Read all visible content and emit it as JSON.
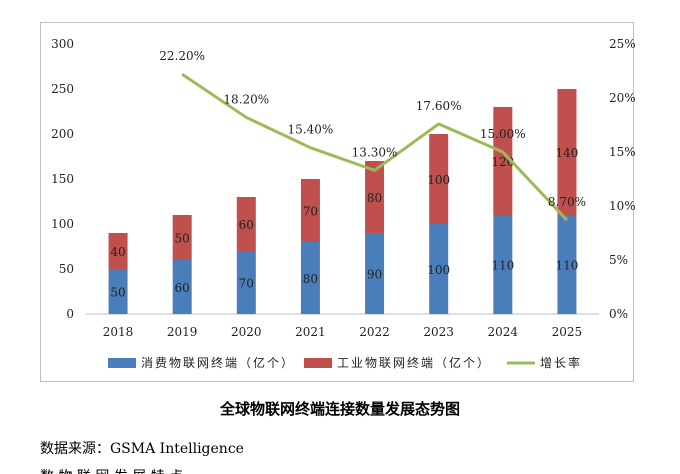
{
  "chart_data": {
    "type": "bar",
    "stacked": true,
    "categories": [
      "2018",
      "2019",
      "2020",
      "2021",
      "2022",
      "2023",
      "2024",
      "2025"
    ],
    "series": [
      {
        "name": "消费物联网终端（亿个）",
        "color": "#4a7ebb",
        "values": [
          50,
          60,
          70,
          80,
          90,
          100,
          110,
          110
        ]
      },
      {
        "name": "工业物联网终端（亿个）",
        "color": "#c0504d",
        "values": [
          40,
          50,
          60,
          70,
          80,
          100,
          120,
          140
        ]
      }
    ],
    "line_series": {
      "name": "增长率",
      "color": "#9bbb59",
      "axis": "right",
      "x": [
        "2019",
        "2020",
        "2021",
        "2022",
        "2023",
        "2024",
        "2025"
      ],
      "values": [
        22.2,
        18.2,
        15.4,
        13.3,
        17.6,
        15.0,
        8.7
      ],
      "labels": [
        "22.20%",
        "18.20%",
        "15.40%",
        "13.30%",
        "17.60%",
        "15.00%",
        "8.70%"
      ]
    },
    "y_left": {
      "min": 0,
      "max": 300,
      "ticks": [
        "0",
        "50",
        "100",
        "150",
        "200",
        "250",
        "300"
      ]
    },
    "y_right": {
      "min": 0,
      "max": 25,
      "ticks": [
        "0%",
        "5%",
        "10%",
        "15%",
        "20%",
        "25%"
      ]
    },
    "legend_position": "bottom",
    "grid": false
  },
  "caption": "全球物联网终端连接数量发展态势图",
  "source": "数据来源：GSMA Intelligence",
  "cutoff_text": "数 物 联 网 发 展 特 点"
}
